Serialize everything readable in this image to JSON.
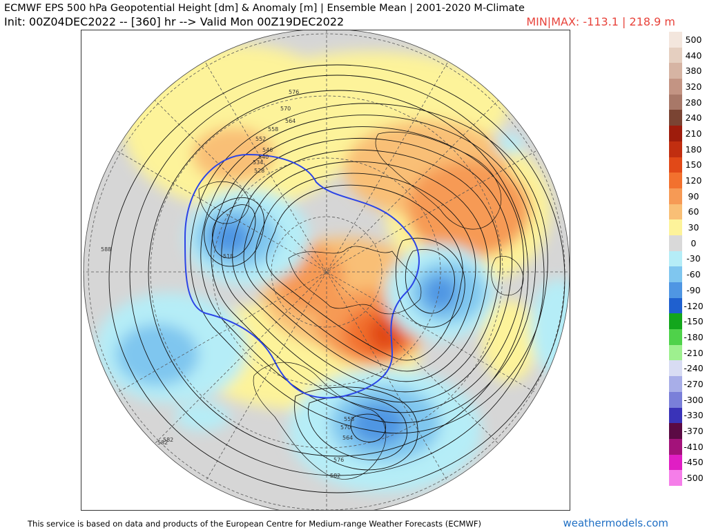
{
  "header": {
    "title": "ECMWF EPS 500 hPa Geopotential Height [dm] & Anomaly [m] | Ensemble Mean | 2001-2020 M-Climate",
    "init": "Init: 00Z04DEC2022 -- [360] hr --> Valid Mon 00Z19DEC2022",
    "minmax": "MIN|MAX: -113.1 | 218.9 m"
  },
  "colorbar": {
    "entries": [
      {
        "label": "500",
        "color": "#f3e6dd"
      },
      {
        "label": "440",
        "color": "#e5cfc0"
      },
      {
        "label": "380",
        "color": "#d6b4a3"
      },
      {
        "label": "320",
        "color": "#c39483"
      },
      {
        "label": "280",
        "color": "#a87868"
      },
      {
        "label": "240",
        "color": "#7a4433"
      },
      {
        "label": "210",
        "color": "#9e1c0c"
      },
      {
        "label": "180",
        "color": "#c12e10"
      },
      {
        "label": "150",
        "color": "#e14918"
      },
      {
        "label": "120",
        "color": "#f2712e"
      },
      {
        "label": "90",
        "color": "#f69a55"
      },
      {
        "label": "60",
        "color": "#f9bf76"
      },
      {
        "label": "30",
        "color": "#fdf39a"
      },
      {
        "label": "0",
        "color": "#d9d9d9"
      },
      {
        "label": "-30",
        "color": "#b5edf7"
      },
      {
        "label": "-60",
        "color": "#7fc6ef"
      },
      {
        "label": "-90",
        "color": "#4f96e3"
      },
      {
        "label": "-120",
        "color": "#1f60cf"
      },
      {
        "label": "-150",
        "color": "#13a61c"
      },
      {
        "label": "-180",
        "color": "#4fd24a"
      },
      {
        "label": "-210",
        "color": "#9ef08f"
      },
      {
        "label": "-240",
        "color": "#d8dcf3"
      },
      {
        "label": "-270",
        "color": "#a8aee8"
      },
      {
        "label": "-300",
        "color": "#7a7fd9"
      },
      {
        "label": "-330",
        "color": "#3a33b8"
      },
      {
        "label": "-370",
        "color": "#5b0a44"
      },
      {
        "label": "-410",
        "color": "#a3127a"
      },
      {
        "label": "-450",
        "color": "#e01ec4"
      },
      {
        "label": "-500",
        "color": "#f57ee9"
      }
    ]
  },
  "map": {
    "contour_labels": [
      "576",
      "570",
      "564",
      "558",
      "552",
      "546",
      "540",
      "534",
      "528",
      "518",
      "588",
      "582",
      "582",
      "576",
      "570",
      "564",
      "558",
      "582"
    ],
    "projection": "north-polar-stereographic"
  },
  "footer": {
    "disclaimer": "This service is based on data and products of the European Centre for Medium-range Weather Forecasts (ECMWF)",
    "brand": "weathermodels.com"
  }
}
